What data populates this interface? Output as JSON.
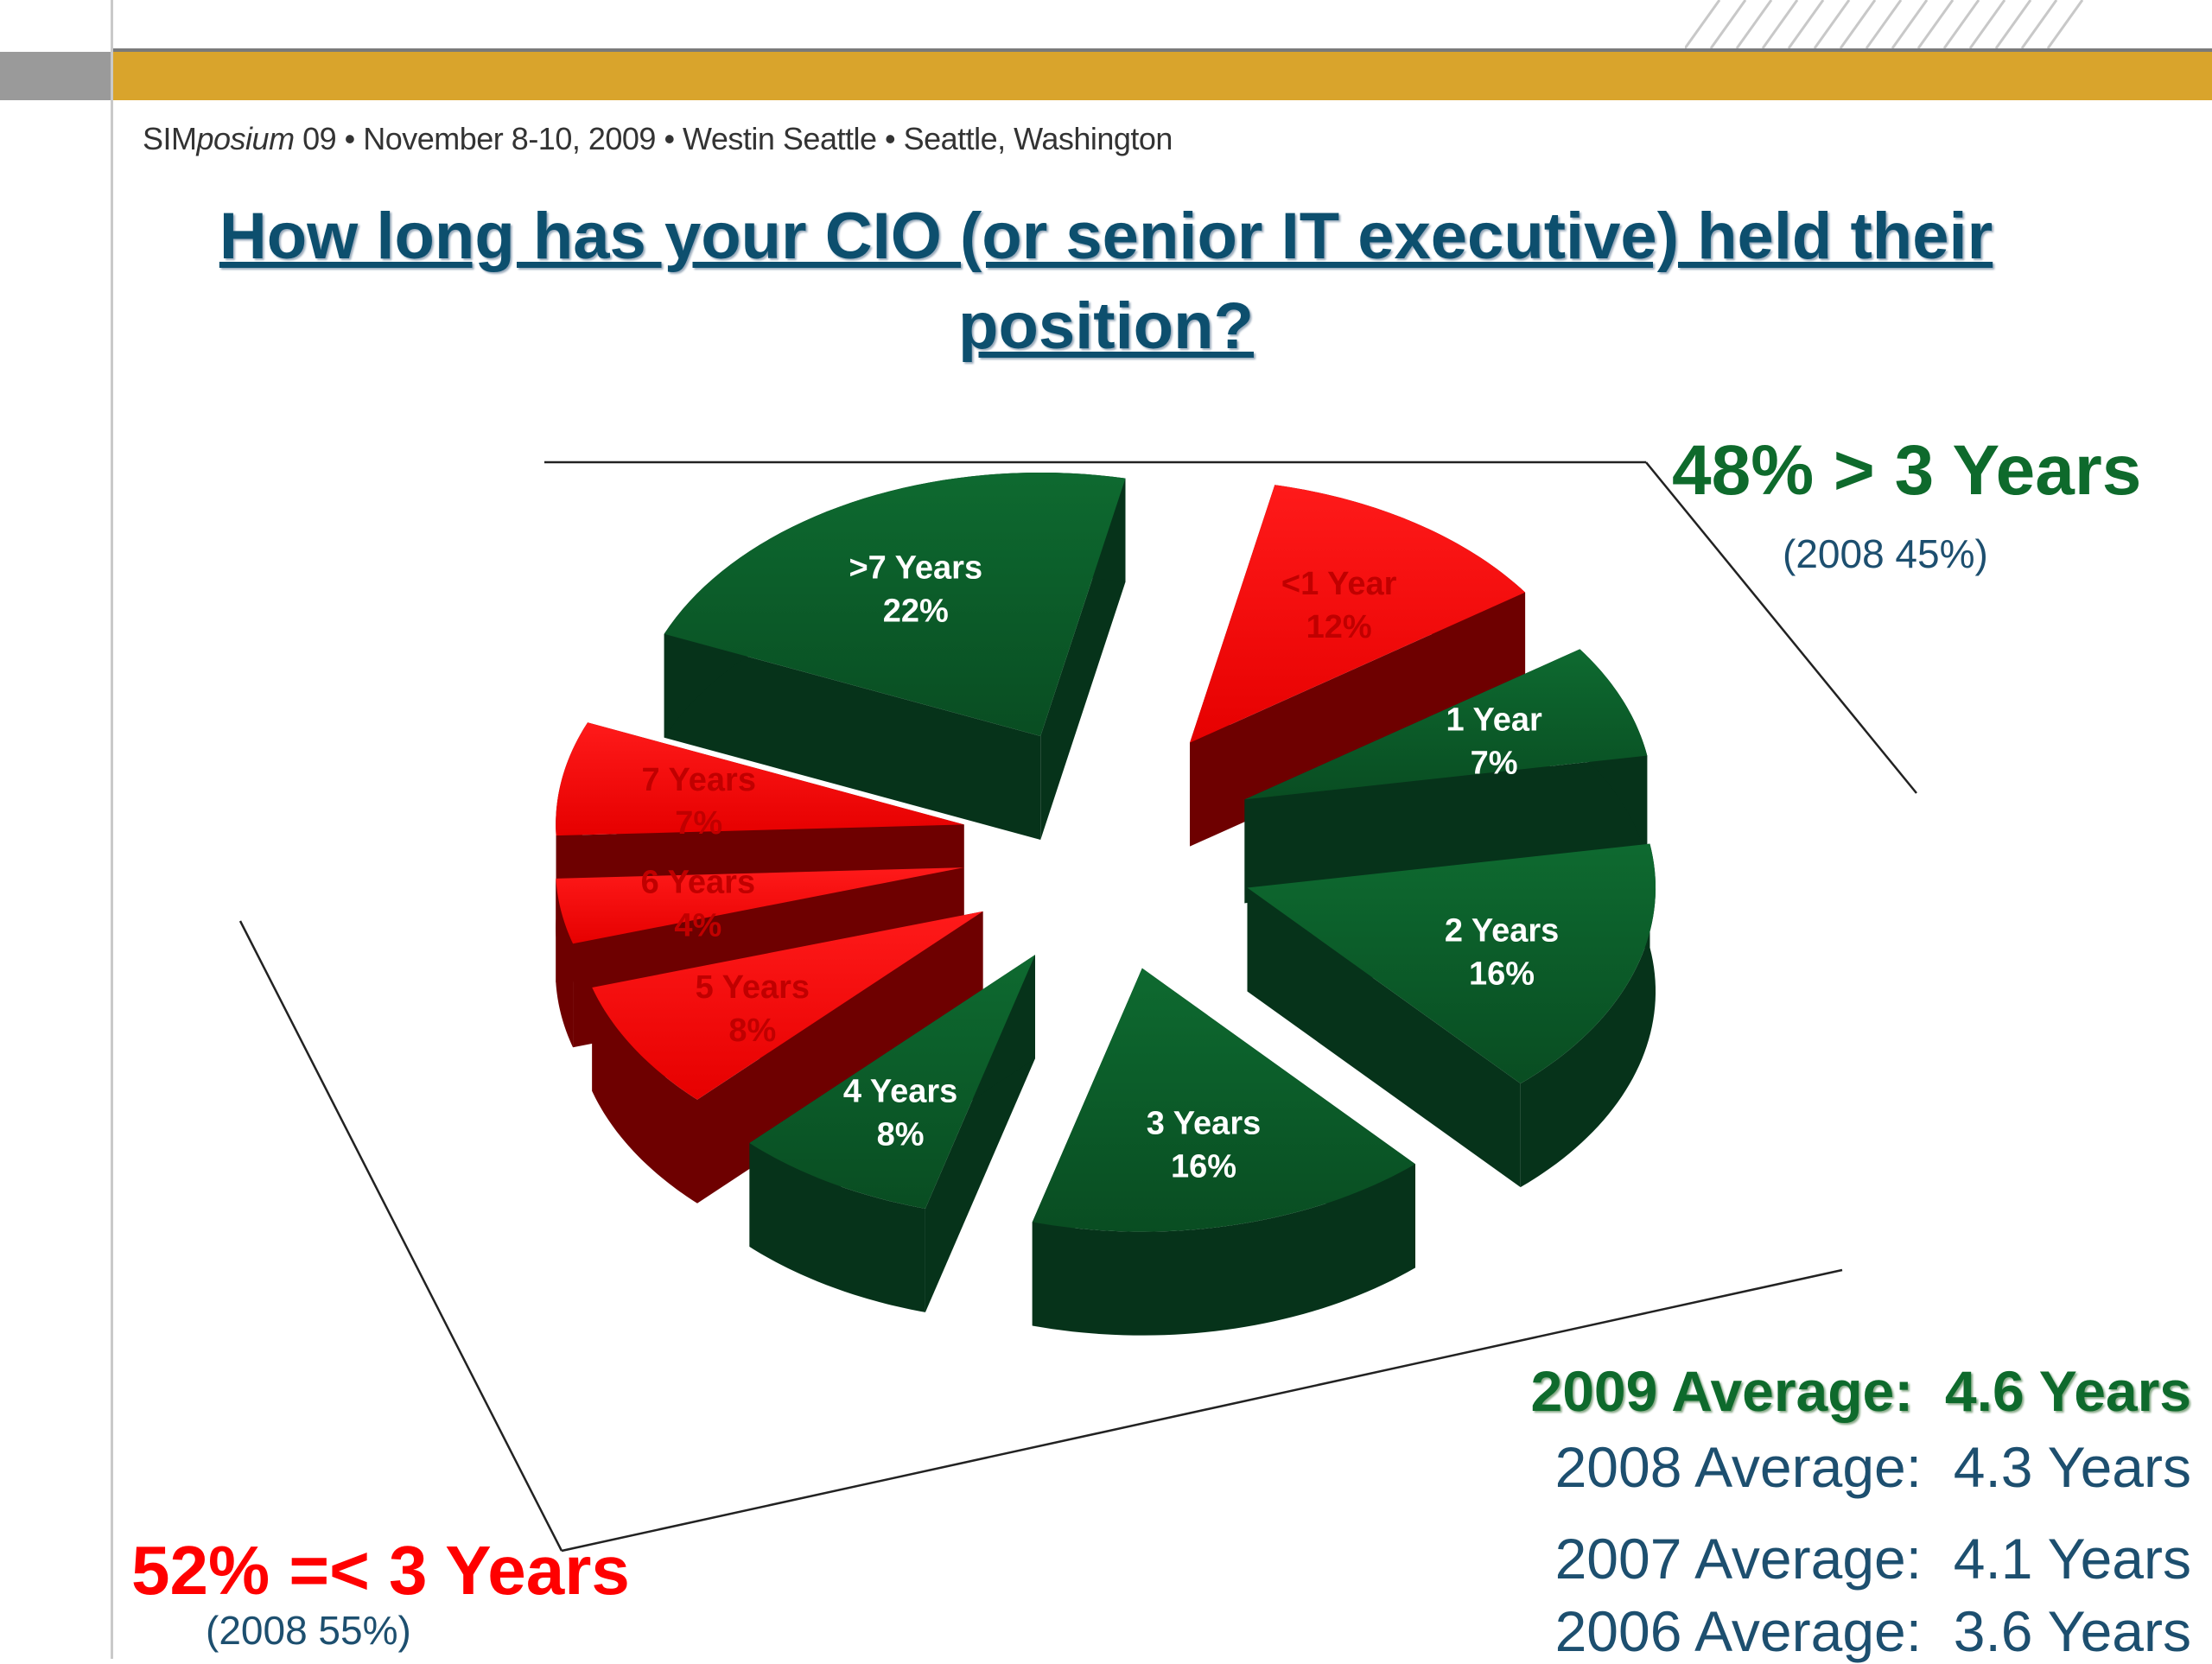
{
  "conference": {
    "sim": "SIM",
    "posium": "posium",
    "rest": " 09  •  November 8-10, 2009  •  Westin Seattle  •  Seattle, Washington"
  },
  "title_line1": "How long has your CIO (or senior IT executive) held their",
  "title_line2": "position?",
  "summary": {
    "over_three": "48% > 3 Years",
    "over_three_prev": "(2008 45%)",
    "under_three": "52% =< 3 Years",
    "under_three_prev": "(2008 55%)"
  },
  "averages": [
    "2009 Average:  4.6 Years",
    "2008 Average:  4.3 Years",
    "2007 Average:  4.1 Years",
    "2006 Average:  3.6 Years"
  ],
  "colors": {
    "green": "#0b5a28",
    "green_side": "#06331a",
    "red": "#ff0000",
    "red_side": "#6e0000"
  },
  "chart_data": {
    "type": "pie",
    "categories": [
      "<1 Year",
      "1 Year",
      "2 Years",
      "3 Years",
      "4 Years",
      "5 Years",
      "6 Years",
      "7 Years",
      ">7 Years"
    ],
    "values": [
      12,
      7,
      16,
      16,
      8,
      8,
      4,
      7,
      22
    ],
    "labels": [
      "<1 Year",
      "1 Year",
      "2 Years",
      "3 Years",
      "4 Years",
      "5 Years",
      "6 Years",
      "7 Years",
      ">7 Years"
    ],
    "value_labels": [
      "12%",
      "7%",
      "16%",
      "16%",
      "8%",
      "8%",
      "4%",
      "7%",
      "22%"
    ],
    "slice_colors": [
      "red",
      "green",
      "green",
      "green",
      "green",
      "red",
      "red",
      "red",
      "green"
    ],
    "title": "How long has your CIO (or senior IT executive) held their position?"
  }
}
